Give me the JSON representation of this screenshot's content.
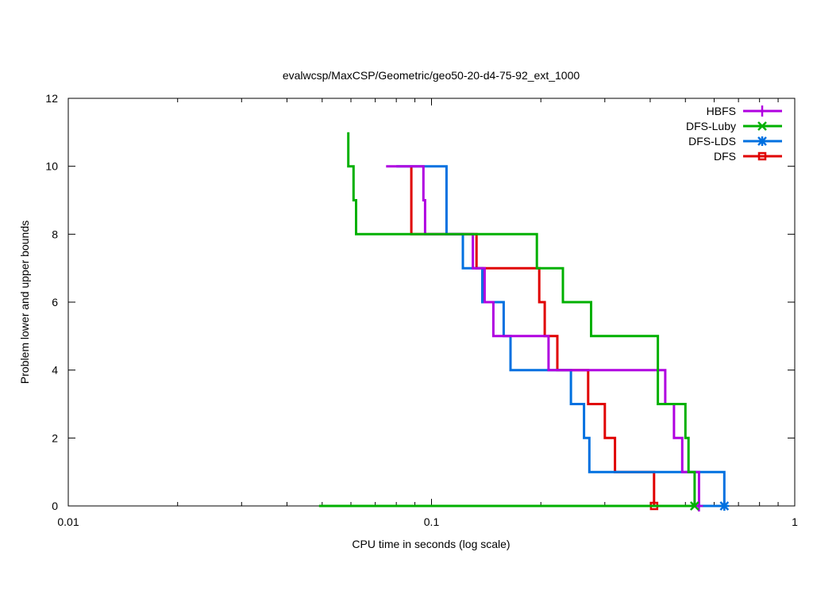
{
  "chart_data": {
    "type": "line",
    "title": "evalwcsp/MaxCSP/Geometric/geo50-20-d4-75-92_ext_1000",
    "xlabel": "CPU time in seconds (log scale)",
    "ylabel": "Problem lower and upper bounds",
    "xscale": "log",
    "xlim": [
      0.01,
      1
    ],
    "ylim": [
      0,
      12
    ],
    "x_ticks": [
      0.01,
      0.1,
      1
    ],
    "x_tick_labels": [
      "0.01",
      "0.1",
      "1"
    ],
    "y_ticks": [
      0,
      2,
      4,
      6,
      8,
      10,
      12
    ],
    "y_tick_labels": [
      "0",
      "2",
      "4",
      "6",
      "8",
      "10",
      "12"
    ],
    "grid": false,
    "legend_position": "top-right",
    "series": [
      {
        "name": "HBFS",
        "color": "#b000e0",
        "marker": "plus",
        "upper": [
          [
            0.075,
            10
          ],
          [
            0.095,
            10
          ],
          [
            0.095,
            9
          ],
          [
            0.096,
            9
          ],
          [
            0.096,
            8
          ],
          [
            0.13,
            8
          ],
          [
            0.13,
            7
          ],
          [
            0.14,
            7
          ],
          [
            0.14,
            6
          ],
          [
            0.148,
            6
          ],
          [
            0.148,
            5
          ],
          [
            0.21,
            5
          ],
          [
            0.21,
            4
          ],
          [
            0.44,
            4
          ],
          [
            0.44,
            3
          ],
          [
            0.465,
            3
          ],
          [
            0.465,
            2
          ],
          [
            0.49,
            2
          ],
          [
            0.49,
            1
          ],
          [
            0.545,
            1
          ],
          [
            0.545,
            0
          ]
        ],
        "lower": [
          [
            0.07,
            0
          ],
          [
            0.545,
            0
          ]
        ],
        "final": [
          0.545,
          0
        ]
      },
      {
        "name": "DFS-Luby",
        "color": "#00b000",
        "marker": "x",
        "upper": [
          [
            0.059,
            11
          ],
          [
            0.059,
            10
          ],
          [
            0.061,
            10
          ],
          [
            0.061,
            9
          ],
          [
            0.062,
            9
          ],
          [
            0.062,
            8
          ],
          [
            0.195,
            8
          ],
          [
            0.195,
            7
          ],
          [
            0.23,
            7
          ],
          [
            0.23,
            6
          ],
          [
            0.275,
            6
          ],
          [
            0.275,
            5
          ],
          [
            0.42,
            5
          ],
          [
            0.42,
            3
          ],
          [
            0.5,
            3
          ],
          [
            0.5,
            2
          ],
          [
            0.51,
            2
          ],
          [
            0.51,
            1
          ],
          [
            0.53,
            1
          ],
          [
            0.53,
            0
          ]
        ],
        "lower": [
          [
            0.049,
            0
          ],
          [
            0.53,
            0
          ]
        ],
        "final": [
          0.53,
          0
        ]
      },
      {
        "name": "DFS-LDS",
        "color": "#0070e0",
        "marker": "star",
        "upper": [
          [
            0.08,
            10
          ],
          [
            0.11,
            10
          ],
          [
            0.11,
            8
          ],
          [
            0.122,
            8
          ],
          [
            0.122,
            7
          ],
          [
            0.138,
            7
          ],
          [
            0.138,
            6
          ],
          [
            0.158,
            6
          ],
          [
            0.158,
            5
          ],
          [
            0.165,
            5
          ],
          [
            0.165,
            4
          ],
          [
            0.242,
            4
          ],
          [
            0.242,
            3
          ],
          [
            0.263,
            3
          ],
          [
            0.263,
            2
          ],
          [
            0.272,
            2
          ],
          [
            0.272,
            1
          ],
          [
            0.64,
            1
          ],
          [
            0.64,
            0
          ]
        ],
        "lower": [
          [
            0.08,
            0
          ],
          [
            0.64,
            0
          ]
        ],
        "final": [
          0.64,
          0
        ]
      },
      {
        "name": "DFS",
        "color": "#e00000",
        "marker": "square",
        "upper": [
          [
            0.088,
            10
          ],
          [
            0.088,
            8
          ],
          [
            0.133,
            8
          ],
          [
            0.133,
            7
          ],
          [
            0.198,
            7
          ],
          [
            0.198,
            6
          ],
          [
            0.205,
            6
          ],
          [
            0.205,
            5
          ],
          [
            0.222,
            5
          ],
          [
            0.222,
            4
          ],
          [
            0.27,
            4
          ],
          [
            0.27,
            3
          ],
          [
            0.3,
            3
          ],
          [
            0.3,
            2
          ],
          [
            0.32,
            2
          ],
          [
            0.32,
            1
          ],
          [
            0.41,
            1
          ],
          [
            0.41,
            0
          ]
        ],
        "lower": [
          [
            0.06,
            0
          ],
          [
            0.41,
            0
          ]
        ],
        "final": [
          0.41,
          0
        ]
      }
    ]
  }
}
